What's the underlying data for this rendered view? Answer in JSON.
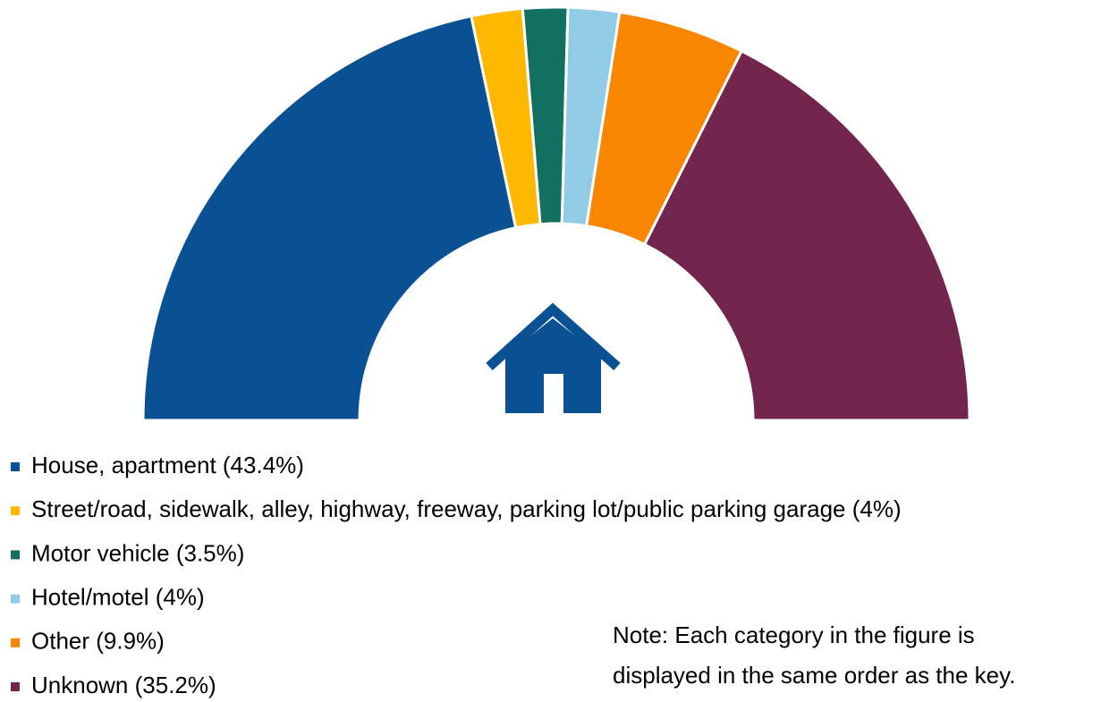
{
  "chart_data": {
    "type": "semi-donut",
    "categories": [
      "House, apartment (43.4%)",
      "Street/road, sidewalk, alley, highway, freeway, parking lot/public parking garage (4%)",
      "Motor vehicle (3.5%)",
      "Hotel/motel (4%)",
      "Other (9.9%)",
      "Unknown (35.2%)"
    ],
    "values": [
      43.4,
      4,
      3.5,
      4,
      9.9,
      35.2
    ],
    "colors": [
      "#0a5194",
      "#ffb800",
      "#127061",
      "#92cbe6",
      "#f88600",
      "#72264d"
    ],
    "note": [
      "Note: Each category in the figure is",
      "displayed in the same order as the key."
    ]
  }
}
